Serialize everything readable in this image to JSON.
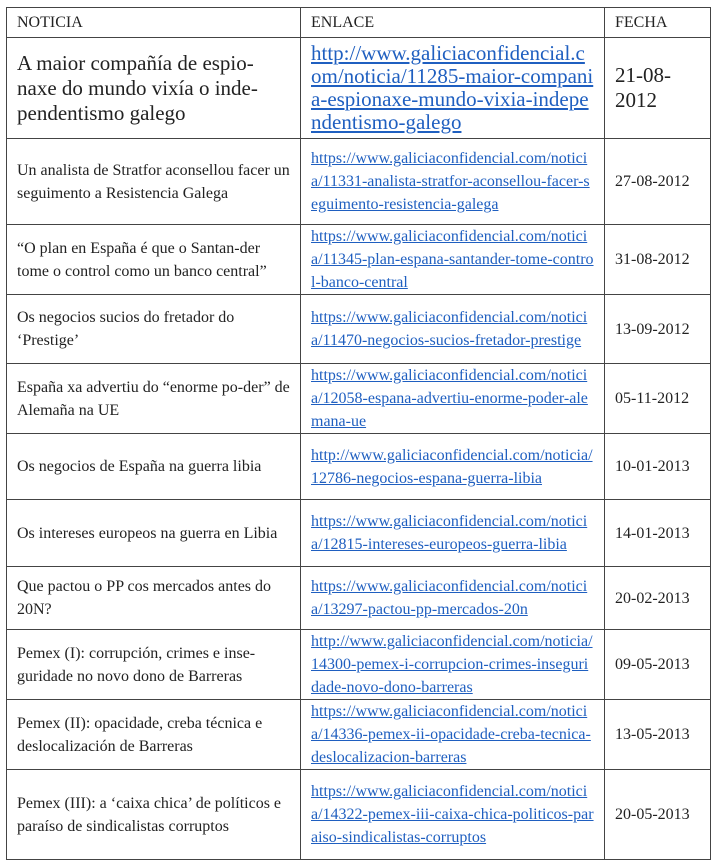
{
  "headers": [
    "NOTICIA",
    "ENLACE",
    "FECHA"
  ],
  "colors": {
    "link": "#1f5fc0",
    "border": "#444444"
  },
  "rows": [
    {
      "title": "A maior compañía de espio-naxe do mundo vixía o inde-pendentismo galego",
      "link": "http://www.galiciaconfidencial.com/noticia/11285-maior-compania-espionaxe-mundo-vixia-independentismo-galego",
      "date": "21-08-2012"
    },
    {
      "title": "Un analista de Stratfor aconsellou facer un seguimento a Resistencia Galega",
      "link": "https://www.galiciaconfidencial.com/noticia/11331-analista-stratfor-aconsellou-facer-seguimento-resistencia-galega",
      "date": "27-08-2012"
    },
    {
      "title": "“O plan en España é que o Santan-der tome o control como un banco central”",
      "link": "https://www.galiciaconfidencial.com/noticia/11345-plan-espana-santander-tome-control-banco-central",
      "date": "31-08-2012"
    },
    {
      "title": "Os negocios sucios do fretador do ‘Prestige’",
      "link": "https://www.galiciaconfidencial.com/noticia/11470-negocios-sucios-fretador-prestige",
      "date": "13-09-2012"
    },
    {
      "title": "España xa advertiu do “enorme po-der” de Alemaña na UE",
      "link": "https://www.galiciaconfidencial.com/noticia/12058-espana-advertiu-enorme-poder-alemana-ue",
      "date": "05-11-2012"
    },
    {
      "title": "Os negocios de España na guerra libia",
      "link": "http://www.galiciaconfidencial.com/noticia/12786-negocios-espana-guerra-libia",
      "date": "10-01-2013"
    },
    {
      "title": "Os intereses europeos na guerra en Libia",
      "link": "https://www.galiciaconfidencial.com/noticia/12815-intereses-europeos-guerra-libia",
      "date": "14-01-2013"
    },
    {
      "title": "Que pactou o PP cos mercados antes do 20N?",
      "link": "https://www.galiciaconfidencial.com/noticia/13297-pactou-pp-mercados-20n",
      "date": "20-02-2013"
    },
    {
      "title": "Pemex (I): corrupción, crimes e inse-guridade no novo dono de Barreras",
      "link": "http://www.galiciaconfidencial.com/noticia/14300-pemex-i-corrupcion-crimes-inseguridade-novo-dono-barreras",
      "date": "09-05-2013"
    },
    {
      "title": "Pemex (II): opacidade, creba técnica e deslocalización de Barreras",
      "link": "https://www.galiciaconfidencial.com/noticia/14336-pemex-ii-opacidade-creba-tecnica-deslocalizacion-barreras",
      "date": "13-05-2013"
    },
    {
      "title": "Pemex (III): a ‘caixa chica’ de políticos e paraíso de sindicalistas corruptos",
      "link": "https://www.galiciaconfidencial.com/noticia/14322-pemex-iii-caixa-chica-politicos-paraiso-sindicalistas-corruptos",
      "date": "20-05-2013"
    }
  ]
}
